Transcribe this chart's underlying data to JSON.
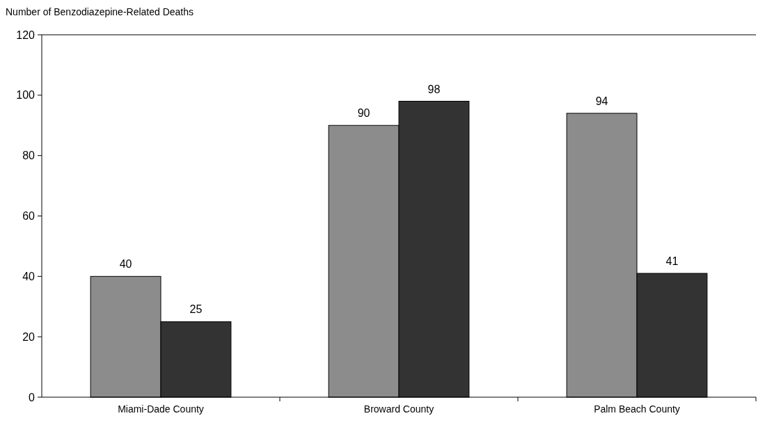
{
  "chart_data": {
    "type": "bar",
    "ylabel": "Number of Benzodiazepine-Related Deaths",
    "categories": [
      "Miami-Dade County",
      "Broward County",
      "Palm Beach County"
    ],
    "series": [
      {
        "color": "#8c8c8c",
        "values": [
          40,
          90,
          94
        ]
      },
      {
        "color": "#333333",
        "values": [
          25,
          98,
          41
        ]
      }
    ],
    "ylim": [
      0,
      120
    ],
    "yticks": [
      0,
      20,
      40,
      60,
      80,
      100,
      120
    ],
    "data_labels": true,
    "grid": false
  }
}
